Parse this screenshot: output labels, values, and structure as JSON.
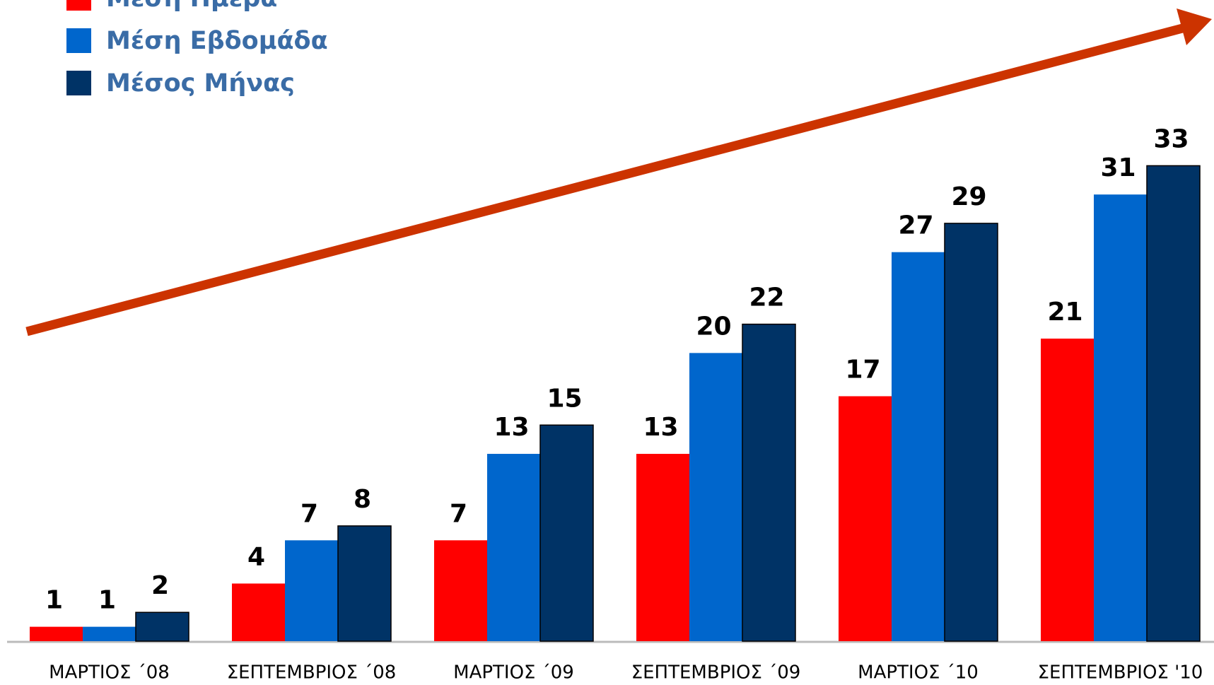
{
  "chart_data": {
    "type": "bar",
    "categories": [
      "ΜΑΡΤΙΟΣ ΄08",
      "ΣΕΠΤΕΜΒΡΙΟΣ ΄08",
      "ΜΑΡΤΙΟΣ ΄09",
      "ΣΕΠΤΕΜΒΡΙΟΣ ΄09",
      "ΜΑΡΤΙΟΣ ΄10",
      "ΣΕΠΤΕΜΒΡΙΟΣ '10"
    ],
    "series": [
      {
        "name": "Μέση Ημέρα",
        "color": "#ff0000",
        "values": [
          1,
          4,
          7,
          13,
          17,
          21
        ]
      },
      {
        "name": "Μέση Εβδομάδα",
        "color": "#0066cc",
        "values": [
          1,
          7,
          13,
          20,
          27,
          31
        ]
      },
      {
        "name": "Μέσος Μήνας",
        "color": "#003366",
        "values": [
          2,
          8,
          15,
          22,
          29,
          33
        ]
      }
    ],
    "ylim": [
      0,
      44.5
    ],
    "legend": "top-left"
  }
}
